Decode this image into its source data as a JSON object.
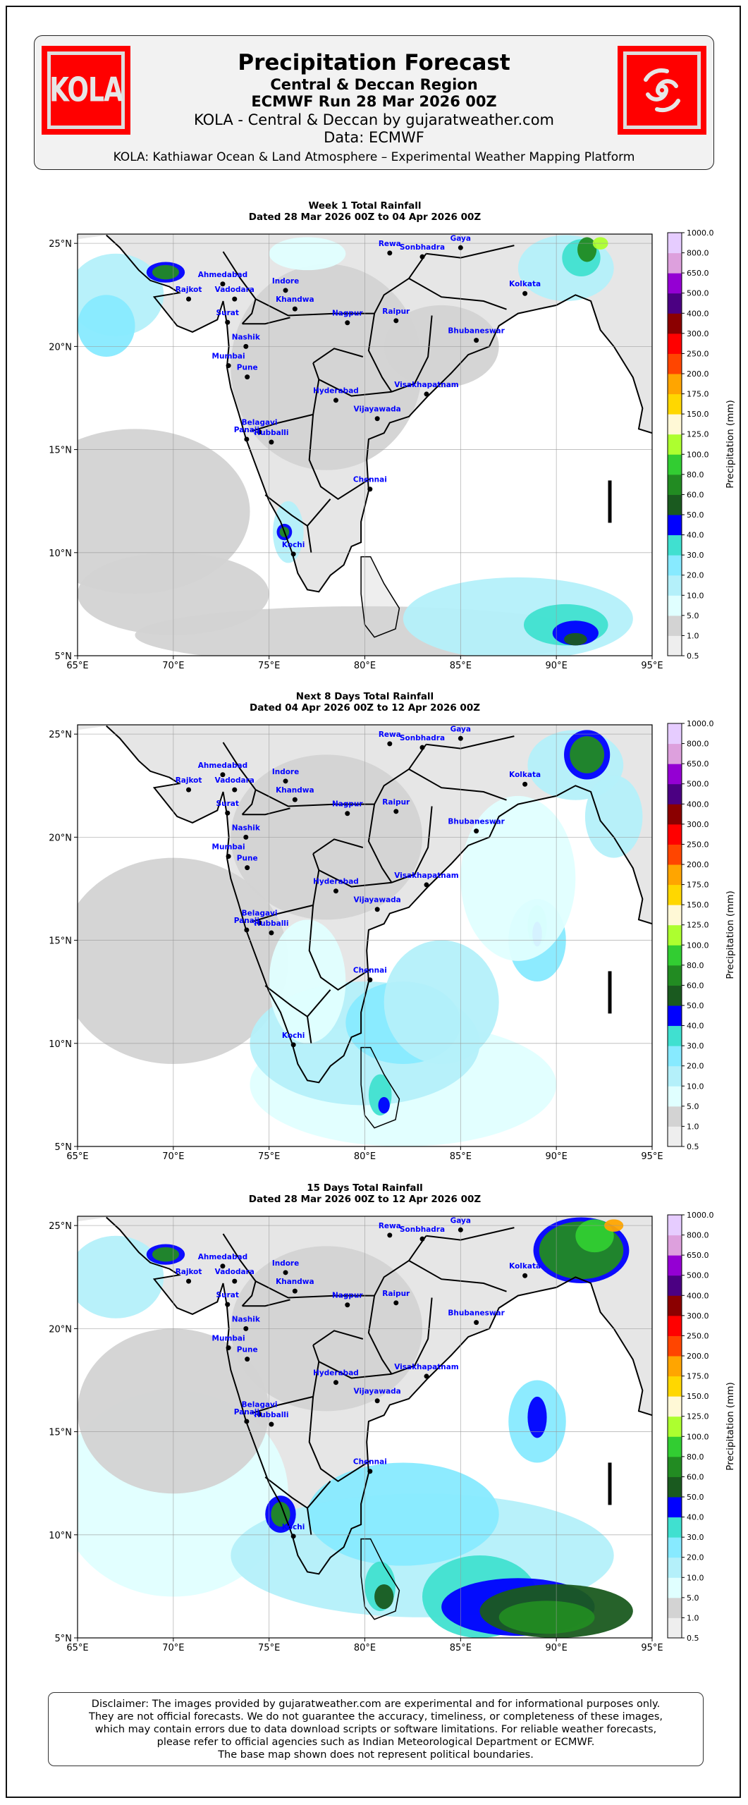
{
  "header": {
    "title": "Precipitation Forecast",
    "region": "Central & Deccan Region",
    "run": "ECMWF Run 28 Mar 2026 00Z",
    "credit": "KOLA - Central & Deccan by gujaratweather.com",
    "data_source": "Data: ECMWF",
    "tagline": "KOLA: Kathiawar Ocean & Land Atmosphere – Experimental Weather Mapping Platform",
    "logo_left_text": "KOLA",
    "logo_right_icon": "cyclone-icon"
  },
  "chart_data": [
    {
      "type": "heatmap",
      "title": "Week 1 Total Rainfall",
      "subtitle": "Dated 28 Mar 2026 00Z to 04 Apr 2026 00Z",
      "xlabel": "",
      "ylabel": "",
      "xlim": [
        65,
        95
      ],
      "ylim": [
        5,
        25.45
      ],
      "colorbar_label": "Precipitation (mm)"
    },
    {
      "type": "heatmap",
      "title": "Next 8 Days Total Rainfall",
      "subtitle": "Dated 04 Apr 2026 00Z to 12 Apr 2026 00Z",
      "xlabel": "",
      "ylabel": "",
      "xlim": [
        65,
        95
      ],
      "ylim": [
        5,
        25.45
      ],
      "colorbar_label": "Precipitation (mm)"
    },
    {
      "type": "heatmap",
      "title": "15 Days Total Rainfall",
      "subtitle": "Dated 28 Mar 2026 00Z to 12 Apr 2026 00Z",
      "xlabel": "",
      "ylabel": "",
      "xlim": [
        65,
        95
      ],
      "ylim": [
        5,
        25.45
      ],
      "colorbar_label": "Precipitation (mm)"
    }
  ],
  "axes": {
    "lon_ticks": [
      "65°E",
      "70°E",
      "75°E",
      "80°E",
      "85°E",
      "90°E",
      "95°E"
    ],
    "lat_ticks": [
      "25°N",
      "20°N",
      "15°N",
      "10°N",
      "5°N"
    ],
    "colorbar_label": "Precipitation (mm)",
    "colorbar_levels": [
      "0.5",
      "1.0",
      "5.0",
      "10.0",
      "20.0",
      "30.0",
      "40.0",
      "50.0",
      "60.0",
      "80.0",
      "100.0",
      "125.0",
      "150.0",
      "175.0",
      "200.0",
      "250.0",
      "300.0",
      "400.0",
      "500.0",
      "650.0",
      "800.0",
      "1000.0"
    ],
    "colorbar_colors": [
      "#eeeeee",
      "#d3d3d3",
      "#e0ffff",
      "#b4f0fa",
      "#87eaff",
      "#40e0d0",
      "#0000ff",
      "#1a5a1f",
      "#228b22",
      "#32cd32",
      "#adff2f",
      "#fff8d6",
      "#ffd700",
      "#ffa500",
      "#ff4500",
      "#ff0000",
      "#8b0000",
      "#4b0082",
      "#9400d3",
      "#dda0dd",
      "#e6ccff"
    ]
  },
  "cities": [
    "Ahmedabad",
    "Rajkot",
    "Vadodara",
    "Indore",
    "Khandwa",
    "Nagpur",
    "Raipur",
    "Rewa",
    "Sonbhadra",
    "Gaya",
    "Kolkata",
    "Bhubaneswar",
    "Surat",
    "Nashik",
    "Mumbai",
    "Pune",
    "Hyderabad",
    "Visakhapatnam",
    "Vijayawada",
    "Belagavi",
    "Panaji",
    "Hubballi",
    "Chennai",
    "Kochi"
  ],
  "disclaimer": [
    "Disclaimer: The images provided by gujaratweather.com are experimental and for informational purposes only.",
    "They are not official forecasts. We do not guarantee the accuracy, timeliness, or completeness of these images,",
    "which may contain errors due to data download scripts or software limitations. For reliable weather forecasts,",
    "please refer to official agencies such as Indian Meteorological Department or ECMWF.",
    "The base map shown does not represent political boundaries."
  ]
}
